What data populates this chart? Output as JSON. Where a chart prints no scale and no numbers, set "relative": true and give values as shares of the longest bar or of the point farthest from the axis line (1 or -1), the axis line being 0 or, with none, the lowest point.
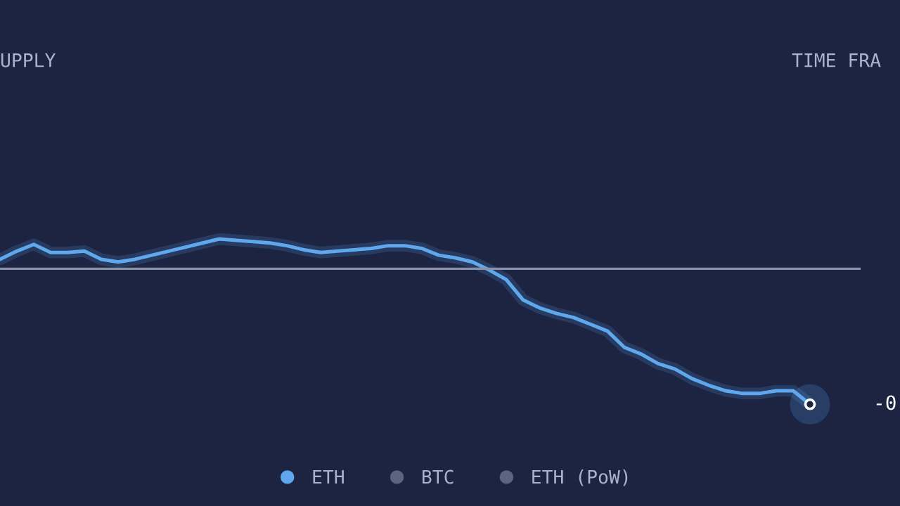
{
  "chart_data": {
    "type": "line",
    "relative": true,
    "categories": [
      null,
      null,
      null,
      null,
      null,
      null,
      null,
      null,
      null,
      null,
      null,
      null,
      null,
      null,
      null,
      null,
      null,
      null,
      null,
      null,
      null,
      null,
      null,
      null,
      null,
      null,
      null,
      null,
      null,
      null,
      null,
      null,
      null,
      null,
      null,
      null,
      null,
      null,
      null,
      null,
      null,
      null,
      null,
      null,
      null,
      null,
      null,
      null,
      null
    ],
    "series": [
      {
        "name": "ETH",
        "color": "#5fa8ee",
        "values": [
          0.07,
          0.13,
          0.18,
          0.12,
          0.12,
          0.13,
          0.07,
          0.05,
          0.07,
          0.1,
          0.13,
          0.16,
          0.19,
          0.22,
          0.21,
          0.2,
          0.19,
          0.17,
          0.14,
          0.12,
          0.13,
          0.14,
          0.15,
          0.17,
          0.17,
          0.15,
          0.1,
          0.08,
          0.05,
          -0.01,
          -0.08,
          -0.23,
          -0.29,
          -0.33,
          -0.36,
          -0.41,
          -0.46,
          -0.58,
          -0.63,
          -0.7,
          -0.74,
          -0.81,
          -0.86,
          -0.9,
          -0.92,
          -0.92,
          -0.9,
          -0.9,
          -1
        ]
      },
      {
        "name": "BTC",
        "color": "#5c6480",
        "values": [
          null,
          null,
          null,
          null,
          null,
          null,
          null,
          null,
          null,
          null,
          null,
          null,
          null,
          null,
          null,
          null,
          null,
          null,
          null,
          null,
          null,
          null,
          null,
          null,
          null,
          null,
          null,
          null,
          null,
          null,
          null,
          null,
          null,
          null,
          null,
          null,
          null,
          null,
          null,
          null,
          null,
          null,
          null,
          null,
          null,
          null,
          null,
          null,
          null
        ]
      },
      {
        "name": "ETH (PoW)",
        "color": "#5c6480",
        "values": [
          null,
          null,
          null,
          null,
          null,
          null,
          null,
          null,
          null,
          null,
          null,
          null,
          null,
          null,
          null,
          null,
          null,
          null,
          null,
          null,
          null,
          null,
          null,
          null,
          null,
          null,
          null,
          null,
          null,
          null,
          null,
          null,
          null,
          null,
          null,
          null,
          null,
          null,
          null,
          null,
          null,
          null,
          null,
          null,
          null,
          null,
          null,
          null,
          null
        ]
      }
    ],
    "annotations": [
      "UPPLY",
      "TIME FRA",
      "-0"
    ],
    "legend": "bottom",
    "marker": "none",
    "line_style": "solid"
  }
}
